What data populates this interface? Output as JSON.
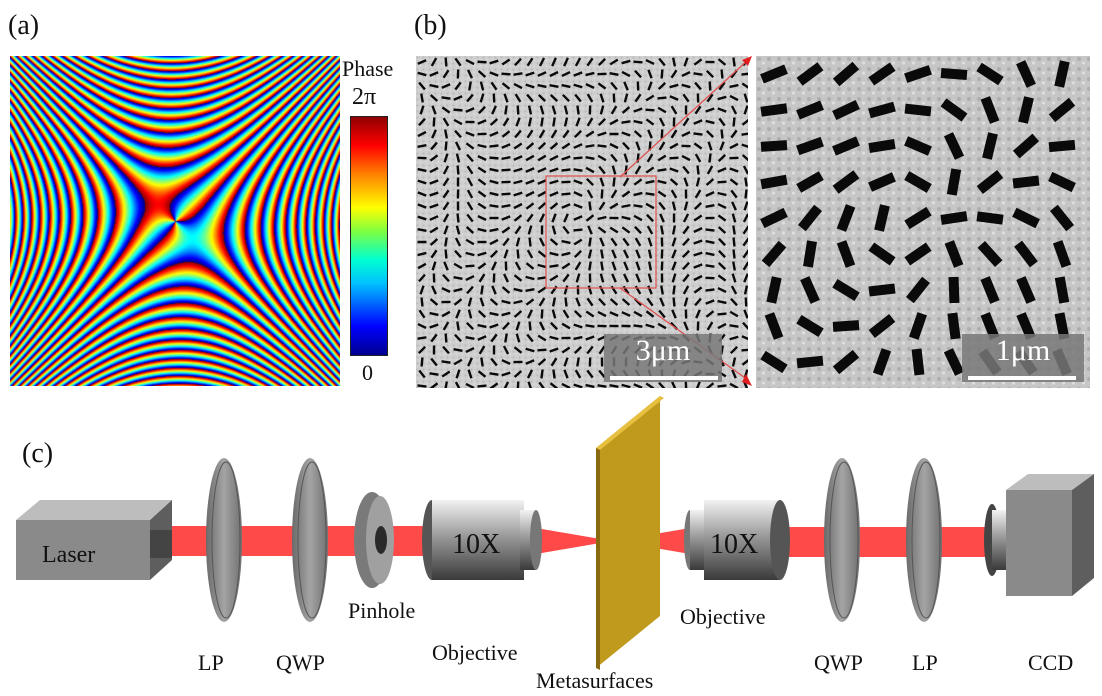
{
  "panels": {
    "a": "(a)",
    "b": "(b)",
    "c": "(c)"
  },
  "colorbar": {
    "title": "Phase",
    "max_label": "2π",
    "min_label": "0"
  },
  "sem": {
    "left_scale": "3μm",
    "right_scale": "1μm"
  },
  "setup": {
    "laser": "Laser",
    "objective_magnification": "10X",
    "labels": {
      "lp_left": "LP",
      "qwp_left": "QWP",
      "pinhole": "Pinhole",
      "objective_left": "Objective",
      "metasurfaces": "Metasurfaces",
      "objective_right": "Objective",
      "qwp_right": "QWP",
      "lp_right": "LP",
      "ccd": "CCD"
    }
  },
  "colors": {
    "beam": "#ff2a2a",
    "sample": "#c8a020",
    "optic": "#808080"
  }
}
